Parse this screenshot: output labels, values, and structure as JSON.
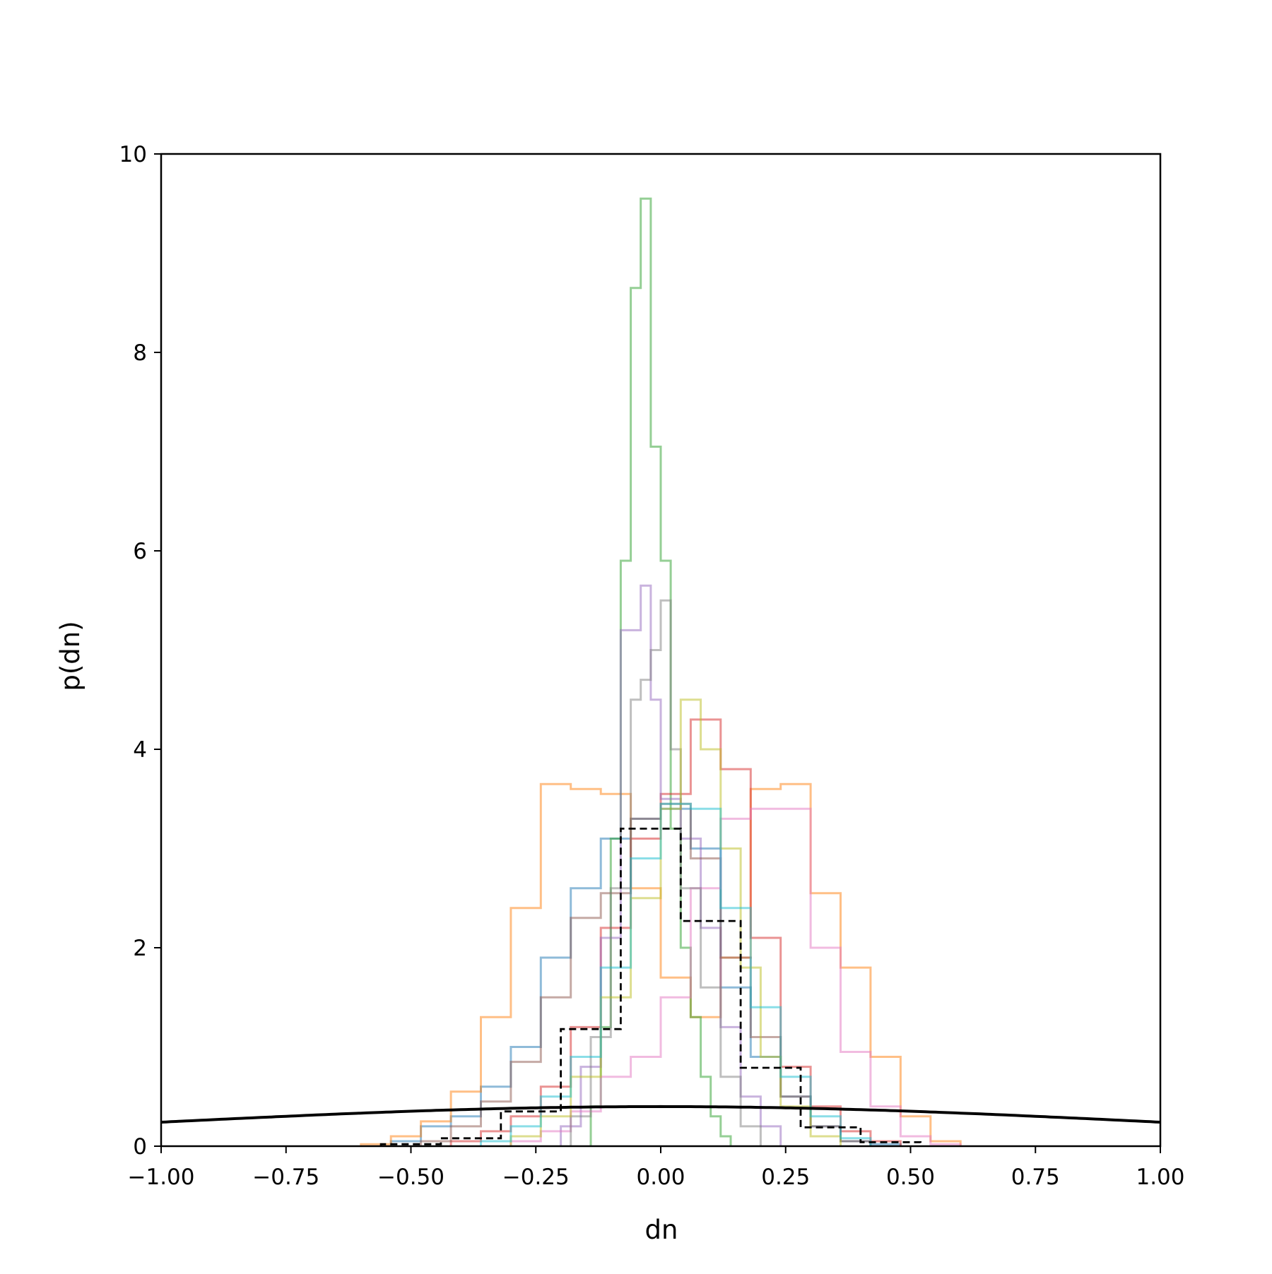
{
  "chart_data": {
    "type": "line",
    "title": "",
    "xlabel": "dn",
    "ylabel": "p(dn)",
    "xlim": [
      -1.0,
      1.0
    ],
    "ylim": [
      0,
      10
    ],
    "x_ticks": [
      -1.0,
      -0.75,
      -0.5,
      -0.25,
      0.0,
      0.25,
      0.5,
      0.75,
      1.0
    ],
    "x_tick_labels": [
      "−1.00",
      "−0.75",
      "−0.50",
      "−0.25",
      "0.00",
      "0.25",
      "0.50",
      "0.75",
      "1.00"
    ],
    "y_ticks": [
      0,
      2,
      4,
      6,
      8,
      10
    ],
    "y_tick_labels": [
      "0",
      "2",
      "4",
      "6",
      "8",
      "10"
    ],
    "grid": false,
    "legend": "none",
    "series": [
      {
        "kind": "step-histogram",
        "color": "#1f77b4",
        "edges": [
          -0.54,
          -0.48,
          -0.42,
          -0.36,
          -0.3,
          -0.24,
          -0.18,
          -0.12,
          -0.06,
          0.0,
          0.06,
          0.12,
          0.18,
          0.24,
          0.3,
          0.36,
          0.42,
          0.48
        ],
        "values": [
          0.05,
          0.2,
          0.3,
          0.6,
          1.0,
          1.9,
          2.6,
          3.1,
          3.3,
          3.4,
          3.0,
          1.6,
          0.9,
          0.5,
          0.2,
          0.05,
          0.02
        ]
      },
      {
        "kind": "step-histogram",
        "color": "#ff7f0e",
        "edges": [
          -0.6,
          -0.54,
          -0.48,
          -0.42,
          -0.36,
          -0.3,
          -0.24,
          -0.18,
          -0.12,
          -0.06,
          0.0,
          0.06,
          0.12,
          0.18,
          0.24,
          0.3,
          0.36,
          0.42,
          0.48,
          0.54,
          0.6
        ],
        "values": [
          0.02,
          0.1,
          0.25,
          0.55,
          1.3,
          2.4,
          3.65,
          3.6,
          3.55,
          2.6,
          1.7,
          1.3,
          1.9,
          3.6,
          3.65,
          2.55,
          1.8,
          0.9,
          0.3,
          0.05
        ]
      },
      {
        "kind": "step-histogram",
        "color": "#2ca02c",
        "edges": [
          -0.14,
          -0.12,
          -0.1,
          -0.08,
          -0.06,
          -0.04,
          -0.02,
          0.0,
          0.02,
          0.04,
          0.06,
          0.08,
          0.1,
          0.12,
          0.14
        ],
        "values": [
          0.4,
          1.2,
          3.1,
          5.9,
          8.65,
          9.55,
          7.05,
          5.9,
          3.2,
          2.0,
          1.3,
          0.7,
          0.3,
          0.1
        ]
      },
      {
        "kind": "step-histogram",
        "color": "#d62728",
        "edges": [
          -0.42,
          -0.36,
          -0.3,
          -0.24,
          -0.18,
          -0.12,
          -0.06,
          0.0,
          0.06,
          0.12,
          0.18,
          0.24,
          0.3,
          0.36,
          0.42,
          0.48
        ],
        "values": [
          0.05,
          0.15,
          0.3,
          0.6,
          1.2,
          2.2,
          3.1,
          3.55,
          4.3,
          3.8,
          2.1,
          0.8,
          0.4,
          0.15,
          0.05
        ]
      },
      {
        "kind": "step-histogram",
        "color": "#9467bd",
        "edges": [
          -0.2,
          -0.16,
          -0.12,
          -0.08,
          -0.04,
          -0.02,
          0.0,
          0.04,
          0.08,
          0.12,
          0.16,
          0.2,
          0.24
        ],
        "values": [
          0.2,
          0.8,
          2.1,
          5.2,
          5.65,
          4.5,
          3.5,
          3.1,
          2.2,
          1.2,
          0.5,
          0.2
        ]
      },
      {
        "kind": "step-histogram",
        "color": "#8c564b",
        "edges": [
          -0.48,
          -0.42,
          -0.36,
          -0.3,
          -0.24,
          -0.18,
          -0.12,
          -0.06,
          0.0,
          0.06,
          0.12,
          0.18,
          0.24,
          0.3,
          0.36,
          0.42
        ],
        "values": [
          0.05,
          0.2,
          0.45,
          0.85,
          1.5,
          2.3,
          2.55,
          3.3,
          3.45,
          2.9,
          1.9,
          1.1,
          0.5,
          0.2,
          0.05
        ]
      },
      {
        "kind": "step-histogram",
        "color": "#e377c2",
        "edges": [
          -0.3,
          -0.24,
          -0.18,
          -0.12,
          -0.06,
          0.0,
          0.06,
          0.12,
          0.18,
          0.24,
          0.3,
          0.36,
          0.42,
          0.48,
          0.54,
          0.6
        ],
        "values": [
          0.05,
          0.15,
          0.35,
          0.7,
          0.9,
          1.5,
          2.6,
          3.3,
          3.4,
          3.4,
          2.0,
          0.95,
          0.4,
          0.1,
          0.02
        ]
      },
      {
        "kind": "step-histogram",
        "color": "#7f7f7f",
        "edges": [
          -0.18,
          -0.14,
          -0.1,
          -0.06,
          -0.04,
          -0.02,
          0.0,
          0.02,
          0.04,
          0.08,
          0.12,
          0.16,
          0.2
        ],
        "values": [
          0.3,
          1.1,
          2.6,
          4.5,
          4.7,
          5.0,
          5.5,
          4.0,
          2.6,
          1.6,
          0.7,
          0.2
        ]
      },
      {
        "kind": "step-histogram",
        "color": "#bcbd22",
        "edges": [
          -0.3,
          -0.24,
          -0.18,
          -0.12,
          -0.06,
          0.0,
          0.04,
          0.08,
          0.12,
          0.16,
          0.2,
          0.24,
          0.3,
          0.36
        ],
        "values": [
          0.1,
          0.3,
          0.7,
          1.5,
          2.5,
          3.4,
          4.5,
          4.0,
          3.0,
          1.8,
          0.9,
          0.4,
          0.1
        ]
      },
      {
        "kind": "step-histogram",
        "color": "#17becf",
        "edges": [
          -0.36,
          -0.3,
          -0.24,
          -0.18,
          -0.12,
          -0.06,
          0.0,
          0.06,
          0.12,
          0.18,
          0.24,
          0.3,
          0.36,
          0.42
        ],
        "values": [
          0.05,
          0.2,
          0.5,
          0.9,
          1.8,
          2.9,
          3.45,
          3.4,
          2.4,
          1.4,
          0.7,
          0.3,
          0.08
        ]
      },
      {
        "kind": "step-histogram-dashed",
        "color": "#000000",
        "edges": [
          -0.56,
          -0.44,
          -0.32,
          -0.2,
          -0.08,
          0.04,
          0.16,
          0.28,
          0.4,
          0.52
        ],
        "values": [
          0.02,
          0.08,
          0.35,
          1.18,
          3.2,
          2.27,
          0.79,
          0.19,
          0.04
        ]
      },
      {
        "kind": "gaussian-curve",
        "color": "#000000",
        "mu": 0.0,
        "sigma": 1.0
      }
    ]
  }
}
